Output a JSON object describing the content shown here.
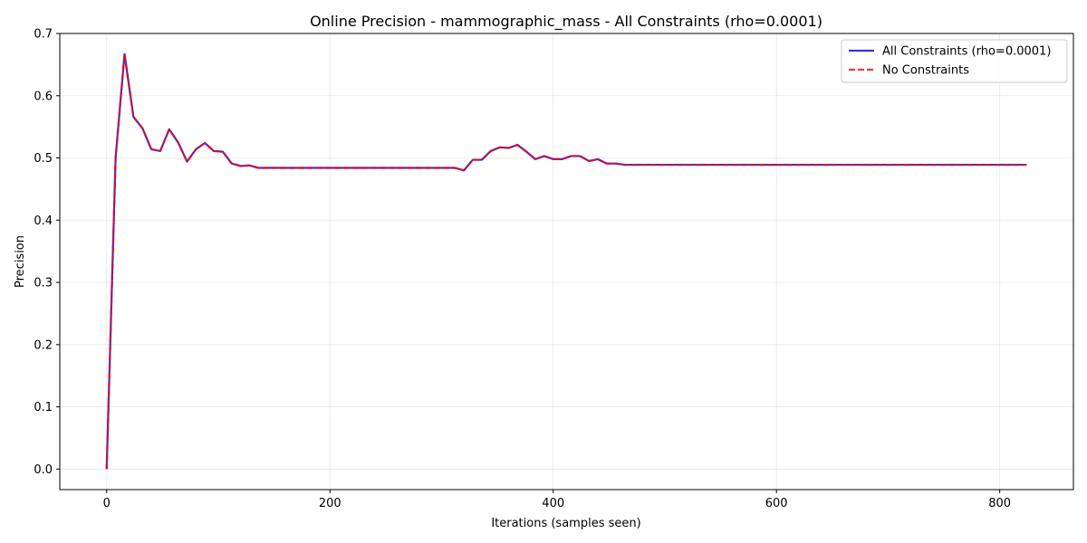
{
  "chart_data": {
    "type": "line",
    "title": "Online Precision - mammographic_mass - All Constraints (rho=0.0001)",
    "xlabel": "Iterations (samples seen)",
    "ylabel": "Precision",
    "xlim": [
      -42,
      866
    ],
    "ylim": [
      -0.033,
      0.7
    ],
    "xticks": [
      0,
      200,
      400,
      600,
      800
    ],
    "yticks": [
      0.0,
      0.1,
      0.2,
      0.3,
      0.4,
      0.5,
      0.6,
      0.7
    ],
    "xtick_labels": [
      "0",
      "200",
      "400",
      "600",
      "800"
    ],
    "ytick_labels": [
      "0.0",
      "0.1",
      "0.2",
      "0.3",
      "0.4",
      "0.5",
      "0.6",
      "0.7"
    ],
    "grid": true,
    "legend_position": "upper right",
    "x": [
      0,
      8,
      16,
      24,
      32,
      40,
      48,
      56,
      64,
      72,
      80,
      88,
      96,
      104,
      112,
      120,
      128,
      136,
      144,
      152,
      160,
      168,
      176,
      184,
      192,
      200,
      208,
      216,
      224,
      232,
      240,
      248,
      256,
      264,
      272,
      280,
      288,
      296,
      304,
      312,
      320,
      328,
      336,
      344,
      352,
      360,
      368,
      376,
      384,
      392,
      400,
      408,
      416,
      424,
      432,
      440,
      448,
      456,
      464,
      472,
      480,
      488,
      496,
      504,
      512,
      520,
      528,
      536,
      544,
      552,
      560,
      568,
      576,
      584,
      592,
      600,
      608,
      616,
      624,
      632,
      640,
      648,
      656,
      664,
      672,
      680,
      688,
      696,
      704,
      712,
      720,
      728,
      736,
      744,
      752,
      760,
      768,
      776,
      784,
      792,
      800,
      808,
      816,
      824
    ],
    "series": [
      {
        "name": "All Constraints (rho=0.0001)",
        "color": "#0000e0",
        "style": "solid",
        "values": [
          0.0,
          0.5,
          0.667,
          0.566,
          0.548,
          0.514,
          0.511,
          0.546,
          0.525,
          0.494,
          0.514,
          0.524,
          0.511,
          0.51,
          0.491,
          0.487,
          0.488,
          0.484,
          0.484,
          0.484,
          0.484,
          0.484,
          0.484,
          0.484,
          0.484,
          0.484,
          0.484,
          0.484,
          0.484,
          0.484,
          0.484,
          0.484,
          0.484,
          0.484,
          0.484,
          0.484,
          0.484,
          0.484,
          0.484,
          0.484,
          0.48,
          0.497,
          0.497,
          0.511,
          0.517,
          0.516,
          0.521,
          0.51,
          0.498,
          0.503,
          0.498,
          0.498,
          0.503,
          0.503,
          0.495,
          0.498,
          0.491,
          0.491,
          0.489,
          0.489,
          0.489,
          0.489,
          0.489,
          0.489,
          0.489,
          0.489,
          0.489,
          0.489,
          0.489,
          0.489,
          0.489,
          0.489,
          0.489,
          0.489,
          0.489,
          0.489,
          0.489,
          0.489,
          0.489,
          0.489,
          0.489,
          0.489,
          0.489,
          0.489,
          0.489,
          0.489,
          0.489,
          0.489,
          0.489,
          0.489,
          0.489,
          0.489,
          0.489,
          0.489,
          0.489,
          0.489,
          0.489,
          0.489,
          0.489,
          0.489,
          0.489,
          0.489,
          0.489,
          0.489
        ]
      },
      {
        "name": "No Constraints",
        "color": "#ff0000",
        "style": "dashed",
        "values": [
          0.0,
          0.5,
          0.667,
          0.566,
          0.548,
          0.514,
          0.511,
          0.546,
          0.525,
          0.494,
          0.514,
          0.524,
          0.511,
          0.51,
          0.491,
          0.487,
          0.488,
          0.484,
          0.484,
          0.484,
          0.484,
          0.484,
          0.484,
          0.484,
          0.484,
          0.484,
          0.484,
          0.484,
          0.484,
          0.484,
          0.484,
          0.484,
          0.484,
          0.484,
          0.484,
          0.484,
          0.484,
          0.484,
          0.484,
          0.484,
          0.48,
          0.497,
          0.497,
          0.511,
          0.517,
          0.516,
          0.521,
          0.51,
          0.498,
          0.503,
          0.498,
          0.498,
          0.503,
          0.503,
          0.495,
          0.498,
          0.491,
          0.491,
          0.489,
          0.489,
          0.489,
          0.489,
          0.489,
          0.489,
          0.489,
          0.489,
          0.489,
          0.489,
          0.489,
          0.489,
          0.489,
          0.489,
          0.489,
          0.489,
          0.489,
          0.489,
          0.489,
          0.489,
          0.489,
          0.489,
          0.489,
          0.489,
          0.489,
          0.489,
          0.489,
          0.489,
          0.489,
          0.489,
          0.489,
          0.489,
          0.489,
          0.489,
          0.489,
          0.489,
          0.489,
          0.489,
          0.489,
          0.489,
          0.489,
          0.489,
          0.489,
          0.489,
          0.489,
          0.489
        ]
      }
    ]
  }
}
